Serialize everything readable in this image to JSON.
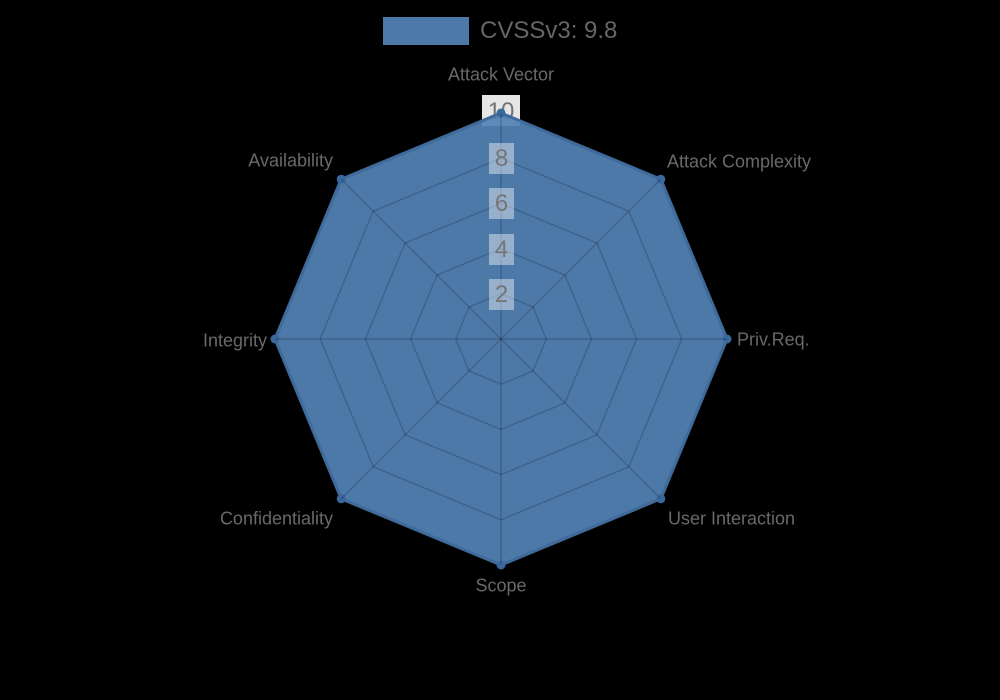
{
  "legend": {
    "label": "CVSSv3: 9.8"
  },
  "chart_data": {
    "type": "radar",
    "title": "CVSSv3: 9.8",
    "categories": [
      "Attack Vector",
      "Attack Complexity",
      "Priv.Req.",
      "User Interaction",
      "Scope",
      "Confidentiality",
      "Integrity",
      "Availability"
    ],
    "series": [
      {
        "name": "CVSSv3: 9.8",
        "values": [
          10,
          10,
          10,
          10,
          10,
          10,
          10,
          10
        ]
      }
    ],
    "scale": {
      "min": 0,
      "max": 10,
      "ticks": [
        2,
        4,
        6,
        8,
        10
      ],
      "grid": "octagonal-web",
      "angle_lines": true
    },
    "legend_position": "top",
    "colors": {
      "series_fill": "rgba(83,130,182,0.93)",
      "series_border": "#3f6a9a",
      "point_marker": "#3a679c",
      "legend_swatch": "#4d79a9",
      "grid_line": "rgba(0,0,0,0.18)",
      "tick_backdrop": "rgba(255,255,255,0.42)",
      "tick_backdrop_outer": "rgba(255,255,255,0.9)",
      "tick_text": "#757575",
      "label_text": "#696969",
      "legend_text": "#666666",
      "background": "#000000"
    }
  }
}
